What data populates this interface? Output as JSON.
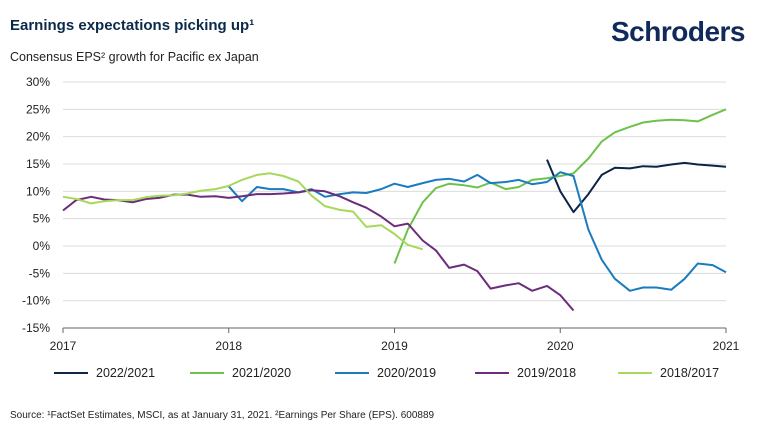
{
  "title": "Earnings expectations picking up¹",
  "brand": "Schroders",
  "subtitle": "Consensus EPS² growth for Pacific ex Japan",
  "footnote": "Source: ¹FactSet Estimates, MSCI, as at January 31, 2021. ²Earnings Per Share (EPS). 600889",
  "chart_data": {
    "type": "line",
    "title": "Consensus EPS² growth for Pacific ex Japan",
    "xlim": [
      2017,
      2021
    ],
    "ylim": [
      -15,
      30
    ],
    "x_ticks": [
      2017,
      2018,
      2019,
      2020,
      2021
    ],
    "x_tick_labels": [
      "2017",
      "2018",
      "2019",
      "2020",
      "2021"
    ],
    "y_ticks": [
      -15,
      -10,
      -5,
      0,
      5,
      10,
      15,
      20,
      25,
      30
    ],
    "y_tick_labels": [
      "-15%",
      "-10%",
      "-5%",
      "0%",
      "5%",
      "10%",
      "15%",
      "20%",
      "25%",
      "30%"
    ],
    "grid": "horizontal",
    "legend_position": "bottom",
    "series": [
      {
        "name": "2022/2021",
        "color": "#0b2447",
        "points": [
          [
            2019.92,
            15.8
          ],
          [
            2020.0,
            10.0
          ],
          [
            2020.08,
            6.2
          ],
          [
            2020.17,
            9.5
          ],
          [
            2020.25,
            13.0
          ],
          [
            2020.33,
            14.3
          ],
          [
            2020.42,
            14.2
          ],
          [
            2020.5,
            14.6
          ],
          [
            2020.58,
            14.5
          ],
          [
            2020.67,
            14.9
          ],
          [
            2020.75,
            15.2
          ],
          [
            2020.83,
            14.9
          ],
          [
            2020.92,
            14.7
          ],
          [
            2021.0,
            14.5
          ]
        ]
      },
      {
        "name": "2021/2020",
        "color": "#6cc24a",
        "points": [
          [
            2019.0,
            -3.2
          ],
          [
            2019.08,
            3.0
          ],
          [
            2019.17,
            8.0
          ],
          [
            2019.25,
            10.6
          ],
          [
            2019.33,
            11.4
          ],
          [
            2019.42,
            11.1
          ],
          [
            2019.5,
            10.7
          ],
          [
            2019.58,
            11.6
          ],
          [
            2019.67,
            10.4
          ],
          [
            2019.75,
            10.8
          ],
          [
            2019.83,
            12.1
          ],
          [
            2019.92,
            12.4
          ],
          [
            2020.0,
            12.8
          ],
          [
            2020.08,
            13.3
          ],
          [
            2020.17,
            16.0
          ],
          [
            2020.25,
            19.1
          ],
          [
            2020.33,
            20.8
          ],
          [
            2020.42,
            21.8
          ],
          [
            2020.5,
            22.6
          ],
          [
            2020.58,
            22.9
          ],
          [
            2020.67,
            23.1
          ],
          [
            2020.75,
            23.0
          ],
          [
            2020.83,
            22.8
          ],
          [
            2020.92,
            24.0
          ],
          [
            2021.0,
            25.0
          ]
        ]
      },
      {
        "name": "2020/2019",
        "color": "#1a7bbf",
        "points": [
          [
            2018.0,
            10.9
          ],
          [
            2018.08,
            8.2
          ],
          [
            2018.17,
            10.8
          ],
          [
            2018.25,
            10.4
          ],
          [
            2018.33,
            10.4
          ],
          [
            2018.42,
            9.8
          ],
          [
            2018.5,
            10.4
          ],
          [
            2018.58,
            9.0
          ],
          [
            2018.67,
            9.5
          ],
          [
            2018.75,
            9.8
          ],
          [
            2018.83,
            9.7
          ],
          [
            2018.92,
            10.4
          ],
          [
            2019.0,
            11.4
          ],
          [
            2019.08,
            10.8
          ],
          [
            2019.17,
            11.5
          ],
          [
            2019.25,
            12.1
          ],
          [
            2019.33,
            12.3
          ],
          [
            2019.42,
            11.8
          ],
          [
            2019.5,
            13.0
          ],
          [
            2019.58,
            11.5
          ],
          [
            2019.67,
            11.7
          ],
          [
            2019.75,
            12.1
          ],
          [
            2019.83,
            11.3
          ],
          [
            2019.92,
            11.7
          ],
          [
            2020.0,
            13.5
          ],
          [
            2020.08,
            12.8
          ],
          [
            2020.17,
            3.0
          ],
          [
            2020.25,
            -2.5
          ],
          [
            2020.33,
            -6.0
          ],
          [
            2020.42,
            -8.2
          ],
          [
            2020.5,
            -7.6
          ],
          [
            2020.58,
            -7.6
          ],
          [
            2020.67,
            -8.0
          ],
          [
            2020.75,
            -6.0
          ],
          [
            2020.83,
            -3.2
          ],
          [
            2020.92,
            -3.5
          ],
          [
            2021.0,
            -4.8
          ]
        ]
      },
      {
        "name": "2019/2018",
        "color": "#6b2d7b",
        "points": [
          [
            2017.0,
            6.5
          ],
          [
            2017.08,
            8.4
          ],
          [
            2017.17,
            9.0
          ],
          [
            2017.25,
            8.5
          ],
          [
            2017.33,
            8.4
          ],
          [
            2017.42,
            8.0
          ],
          [
            2017.5,
            8.6
          ],
          [
            2017.58,
            8.8
          ],
          [
            2017.67,
            9.4
          ],
          [
            2017.75,
            9.4
          ],
          [
            2017.83,
            9.0
          ],
          [
            2017.92,
            9.1
          ],
          [
            2018.0,
            8.8
          ],
          [
            2018.08,
            9.1
          ],
          [
            2018.17,
            9.5
          ],
          [
            2018.25,
            9.5
          ],
          [
            2018.33,
            9.6
          ],
          [
            2018.42,
            9.8
          ],
          [
            2018.5,
            10.2
          ],
          [
            2018.58,
            10.0
          ],
          [
            2018.67,
            9.1
          ],
          [
            2018.75,
            8.0
          ],
          [
            2018.83,
            7.0
          ],
          [
            2018.92,
            5.4
          ],
          [
            2019.0,
            3.6
          ],
          [
            2019.08,
            4.1
          ],
          [
            2019.17,
            1.0
          ],
          [
            2019.25,
            -0.8
          ],
          [
            2019.33,
            -4.0
          ],
          [
            2019.42,
            -3.4
          ],
          [
            2019.5,
            -4.6
          ],
          [
            2019.58,
            -7.8
          ],
          [
            2019.67,
            -7.2
          ],
          [
            2019.75,
            -6.8
          ],
          [
            2019.83,
            -8.2
          ],
          [
            2019.92,
            -7.3
          ],
          [
            2020.0,
            -9.0
          ],
          [
            2020.08,
            -11.8
          ]
        ]
      },
      {
        "name": "2018/2017",
        "color": "#a6d85a",
        "points": [
          [
            2017.0,
            9.0
          ],
          [
            2017.08,
            8.6
          ],
          [
            2017.17,
            7.8
          ],
          [
            2017.25,
            8.2
          ],
          [
            2017.33,
            8.4
          ],
          [
            2017.42,
            8.4
          ],
          [
            2017.5,
            8.9
          ],
          [
            2017.58,
            9.2
          ],
          [
            2017.67,
            9.3
          ],
          [
            2017.75,
            9.6
          ],
          [
            2017.83,
            10.1
          ],
          [
            2017.92,
            10.4
          ],
          [
            2018.0,
            11.0
          ],
          [
            2018.08,
            12.1
          ],
          [
            2018.17,
            13.0
          ],
          [
            2018.25,
            13.3
          ],
          [
            2018.33,
            12.8
          ],
          [
            2018.42,
            11.8
          ],
          [
            2018.5,
            9.2
          ],
          [
            2018.58,
            7.3
          ],
          [
            2018.67,
            6.6
          ],
          [
            2018.75,
            6.3
          ],
          [
            2018.83,
            3.5
          ],
          [
            2018.92,
            3.8
          ],
          [
            2019.0,
            2.2
          ],
          [
            2019.08,
            0.2
          ],
          [
            2019.17,
            -0.6
          ]
        ]
      }
    ]
  }
}
